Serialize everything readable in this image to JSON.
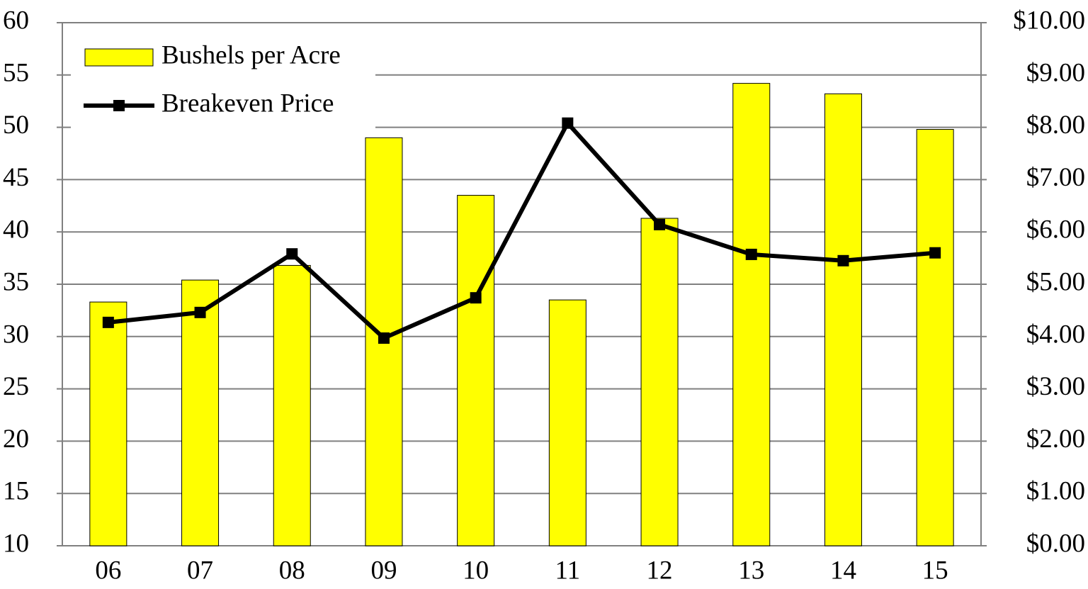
{
  "chart_data": {
    "type": "bar+line",
    "categories": [
      "06",
      "07",
      "08",
      "09",
      "10",
      "11",
      "12",
      "13",
      "14",
      "15"
    ],
    "series": [
      {
        "name": "Bushels per Acre",
        "type": "bar",
        "color": "#ffff00",
        "values": [
          33.3,
          35.4,
          36.8,
          49.0,
          43.5,
          33.5,
          41.3,
          54.2,
          53.2,
          49.8
        ]
      },
      {
        "name": "Breakeven Price",
        "type": "line",
        "axis": "y2",
        "color": "#000000",
        "values": [
          4.27,
          4.46,
          5.58,
          3.97,
          4.74,
          8.08,
          6.14,
          5.57,
          5.45,
          5.6
        ]
      }
    ],
    "ylim": [
      10,
      60
    ],
    "yticks": [
      10,
      15,
      20,
      25,
      30,
      35,
      40,
      45,
      50,
      55,
      60
    ],
    "y2lim": [
      0,
      10
    ],
    "y2ticks": [
      {
        "value": 0,
        "label": "$0.00"
      },
      {
        "value": 1,
        "label": "$1.00"
      },
      {
        "value": 2,
        "label": "$2.00"
      },
      {
        "value": 3,
        "label": "$3.00"
      },
      {
        "value": 4,
        "label": "$4.00"
      },
      {
        "value": 5,
        "label": "$5.00"
      },
      {
        "value": 6,
        "label": "$6.00"
      },
      {
        "value": 7,
        "label": "$7.00"
      },
      {
        "value": 8,
        "label": "$8.00"
      },
      {
        "value": 9,
        "label": "$9.00"
      },
      {
        "value": 10,
        "label": "$10.00"
      }
    ],
    "grid": true,
    "legend": "top-left"
  }
}
